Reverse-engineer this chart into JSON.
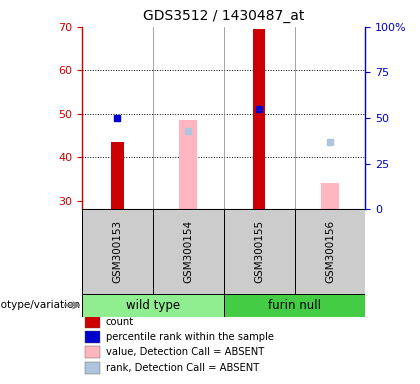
{
  "title": "GDS3512 / 1430487_at",
  "samples": [
    "GSM300153",
    "GSM300154",
    "GSM300155",
    "GSM300156"
  ],
  "ylim_left": [
    28,
    70
  ],
  "ylim_right": [
    0,
    100
  ],
  "yticks_left": [
    30,
    40,
    50,
    60,
    70
  ],
  "yticks_right": [
    0,
    25,
    50,
    75,
    100
  ],
  "yticklabels_right": [
    "0",
    "25",
    "50",
    "75",
    "100%"
  ],
  "red_bars": {
    "GSM300153": 43.5,
    "GSM300154": null,
    "GSM300155": 69.5,
    "GSM300156": null
  },
  "blue_squares": {
    "GSM300153": 49.0,
    "GSM300154": null,
    "GSM300155": 51.0,
    "GSM300156": null
  },
  "pink_bars": {
    "GSM300153": null,
    "GSM300154": 48.5,
    "GSM300155": null,
    "GSM300156": 34.0
  },
  "lightblue_squares": {
    "GSM300153": null,
    "GSM300154": 46.0,
    "GSM300155": null,
    "GSM300156": 43.5
  },
  "bar_bottom": 28,
  "genotype_groups": [
    {
      "label": "wild type",
      "samples": [
        "GSM300153",
        "GSM300154"
      ],
      "color": "#90EE90"
    },
    {
      "label": "furin null",
      "samples": [
        "GSM300155",
        "GSM300156"
      ],
      "color": "#44CC44"
    }
  ],
  "legend_items": [
    {
      "label": "count",
      "color": "#CC0000"
    },
    {
      "label": "percentile rank within the sample",
      "color": "#0000CC"
    },
    {
      "label": "value, Detection Call = ABSENT",
      "color": "#FFB6C1"
    },
    {
      "label": "rank, Detection Call = ABSENT",
      "color": "#B0C4DE"
    }
  ],
  "left_label_color": "#CC0000",
  "right_label_color": "#0000CC",
  "background_color": "#ffffff"
}
